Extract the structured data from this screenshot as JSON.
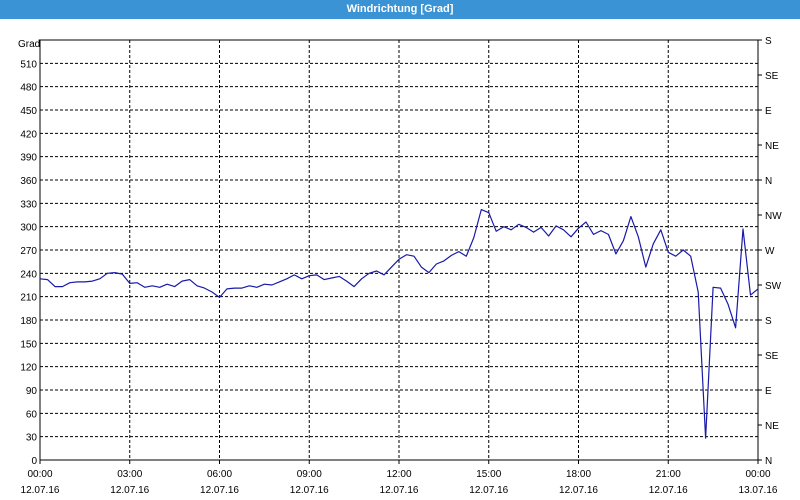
{
  "window": {
    "title": "Windrichtung [Grad]"
  },
  "chart_data": {
    "type": "line",
    "title": "Windrichtung [Grad]",
    "ylabel": "Grad",
    "xlabel": "",
    "ylim": [
      0,
      540
    ],
    "xlim": [
      0,
      24
    ],
    "grid": true,
    "y_ticks": [
      0,
      30,
      60,
      90,
      120,
      150,
      180,
      210,
      240,
      270,
      300,
      330,
      360,
      390,
      420,
      450,
      480,
      510
    ],
    "x_ticks": [
      {
        "x": 0,
        "time": "00:00",
        "date": "12.07.16"
      },
      {
        "x": 3,
        "time": "03:00",
        "date": "12.07.16"
      },
      {
        "x": 6,
        "time": "06:00",
        "date": "12.07.16"
      },
      {
        "x": 9,
        "time": "09:00",
        "date": "12.07.16"
      },
      {
        "x": 12,
        "time": "12:00",
        "date": "12.07.16"
      },
      {
        "x": 15,
        "time": "15:00",
        "date": "12.07.16"
      },
      {
        "x": 18,
        "time": "18:00",
        "date": "12.07.16"
      },
      {
        "x": 21,
        "time": "21:00",
        "date": "12.07.16"
      },
      {
        "x": 24,
        "time": "00:00",
        "date": "13.07.16"
      }
    ],
    "right_ticks": [
      {
        "y": 0,
        "label": "N"
      },
      {
        "y": 45,
        "label": "NE"
      },
      {
        "y": 90,
        "label": "E"
      },
      {
        "y": 135,
        "label": "SE"
      },
      {
        "y": 180,
        "label": "S"
      },
      {
        "y": 225,
        "label": "SW"
      },
      {
        "y": 270,
        "label": "W"
      },
      {
        "y": 315,
        "label": "NW"
      },
      {
        "y": 360,
        "label": "N"
      },
      {
        "y": 405,
        "label": "NE"
      },
      {
        "y": 450,
        "label": "E"
      },
      {
        "y": 495,
        "label": "SE"
      },
      {
        "y": 540,
        "label": "S"
      }
    ],
    "series": [
      {
        "color": "#1a1aa8",
        "points": [
          [
            0.0,
            233
          ],
          [
            0.25,
            232
          ],
          [
            0.5,
            223
          ],
          [
            0.75,
            223
          ],
          [
            1.0,
            228
          ],
          [
            1.25,
            229
          ],
          [
            1.5,
            229
          ],
          [
            1.75,
            230
          ],
          [
            2.0,
            233
          ],
          [
            2.25,
            240
          ],
          [
            2.5,
            241
          ],
          [
            2.75,
            239
          ],
          [
            3.0,
            227
          ],
          [
            3.25,
            228
          ],
          [
            3.5,
            222
          ],
          [
            3.75,
            224
          ],
          [
            4.0,
            222
          ],
          [
            4.25,
            226
          ],
          [
            4.5,
            223
          ],
          [
            4.75,
            230
          ],
          [
            5.0,
            232
          ],
          [
            5.25,
            224
          ],
          [
            5.5,
            221
          ],
          [
            5.75,
            216
          ],
          [
            6.0,
            209
          ],
          [
            6.25,
            220
          ],
          [
            6.5,
            221
          ],
          [
            6.75,
            221
          ],
          [
            7.0,
            224
          ],
          [
            7.25,
            222
          ],
          [
            7.5,
            226
          ],
          [
            7.75,
            225
          ],
          [
            8.0,
            229
          ],
          [
            8.25,
            233
          ],
          [
            8.5,
            238
          ],
          [
            8.75,
            233
          ],
          [
            9.0,
            237
          ],
          [
            9.25,
            238
          ],
          [
            9.5,
            232
          ],
          [
            9.75,
            234
          ],
          [
            10.0,
            236
          ],
          [
            10.25,
            230
          ],
          [
            10.5,
            223
          ],
          [
            10.75,
            233
          ],
          [
            11.0,
            240
          ],
          [
            11.25,
            243
          ],
          [
            11.5,
            238
          ],
          [
            11.75,
            248
          ],
          [
            12.0,
            258
          ],
          [
            12.25,
            264
          ],
          [
            12.5,
            262
          ],
          [
            12.75,
            248
          ],
          [
            13.0,
            241
          ],
          [
            13.25,
            252
          ],
          [
            13.5,
            256
          ],
          [
            13.75,
            263
          ],
          [
            14.0,
            268
          ],
          [
            14.25,
            262
          ],
          [
            14.5,
            286
          ],
          [
            14.75,
            322
          ],
          [
            15.0,
            318
          ],
          [
            15.25,
            294
          ],
          [
            15.5,
            300
          ],
          [
            15.75,
            296
          ],
          [
            16.0,
            303
          ],
          [
            16.25,
            299
          ],
          [
            16.5,
            293
          ],
          [
            16.75,
            299
          ],
          [
            17.0,
            288
          ],
          [
            17.25,
            301
          ],
          [
            17.5,
            296
          ],
          [
            17.75,
            287
          ],
          [
            18.0,
            298
          ],
          [
            18.25,
            306
          ],
          [
            18.5,
            290
          ],
          [
            18.75,
            295
          ],
          [
            19.0,
            290
          ],
          [
            19.25,
            265
          ],
          [
            19.5,
            282
          ],
          [
            19.75,
            313
          ],
          [
            20.0,
            287
          ],
          [
            20.25,
            248
          ],
          [
            20.5,
            278
          ],
          [
            20.75,
            296
          ],
          [
            21.0,
            267
          ],
          [
            21.25,
            262
          ],
          [
            21.5,
            270
          ],
          [
            21.75,
            262
          ],
          [
            22.0,
            216
          ],
          [
            22.25,
            28
          ],
          [
            22.5,
            222
          ],
          [
            22.75,
            221
          ],
          [
            23.0,
            200
          ],
          [
            23.25,
            170
          ],
          [
            23.5,
            297
          ],
          [
            23.75,
            212
          ],
          [
            24.0,
            220
          ]
        ]
      }
    ]
  }
}
